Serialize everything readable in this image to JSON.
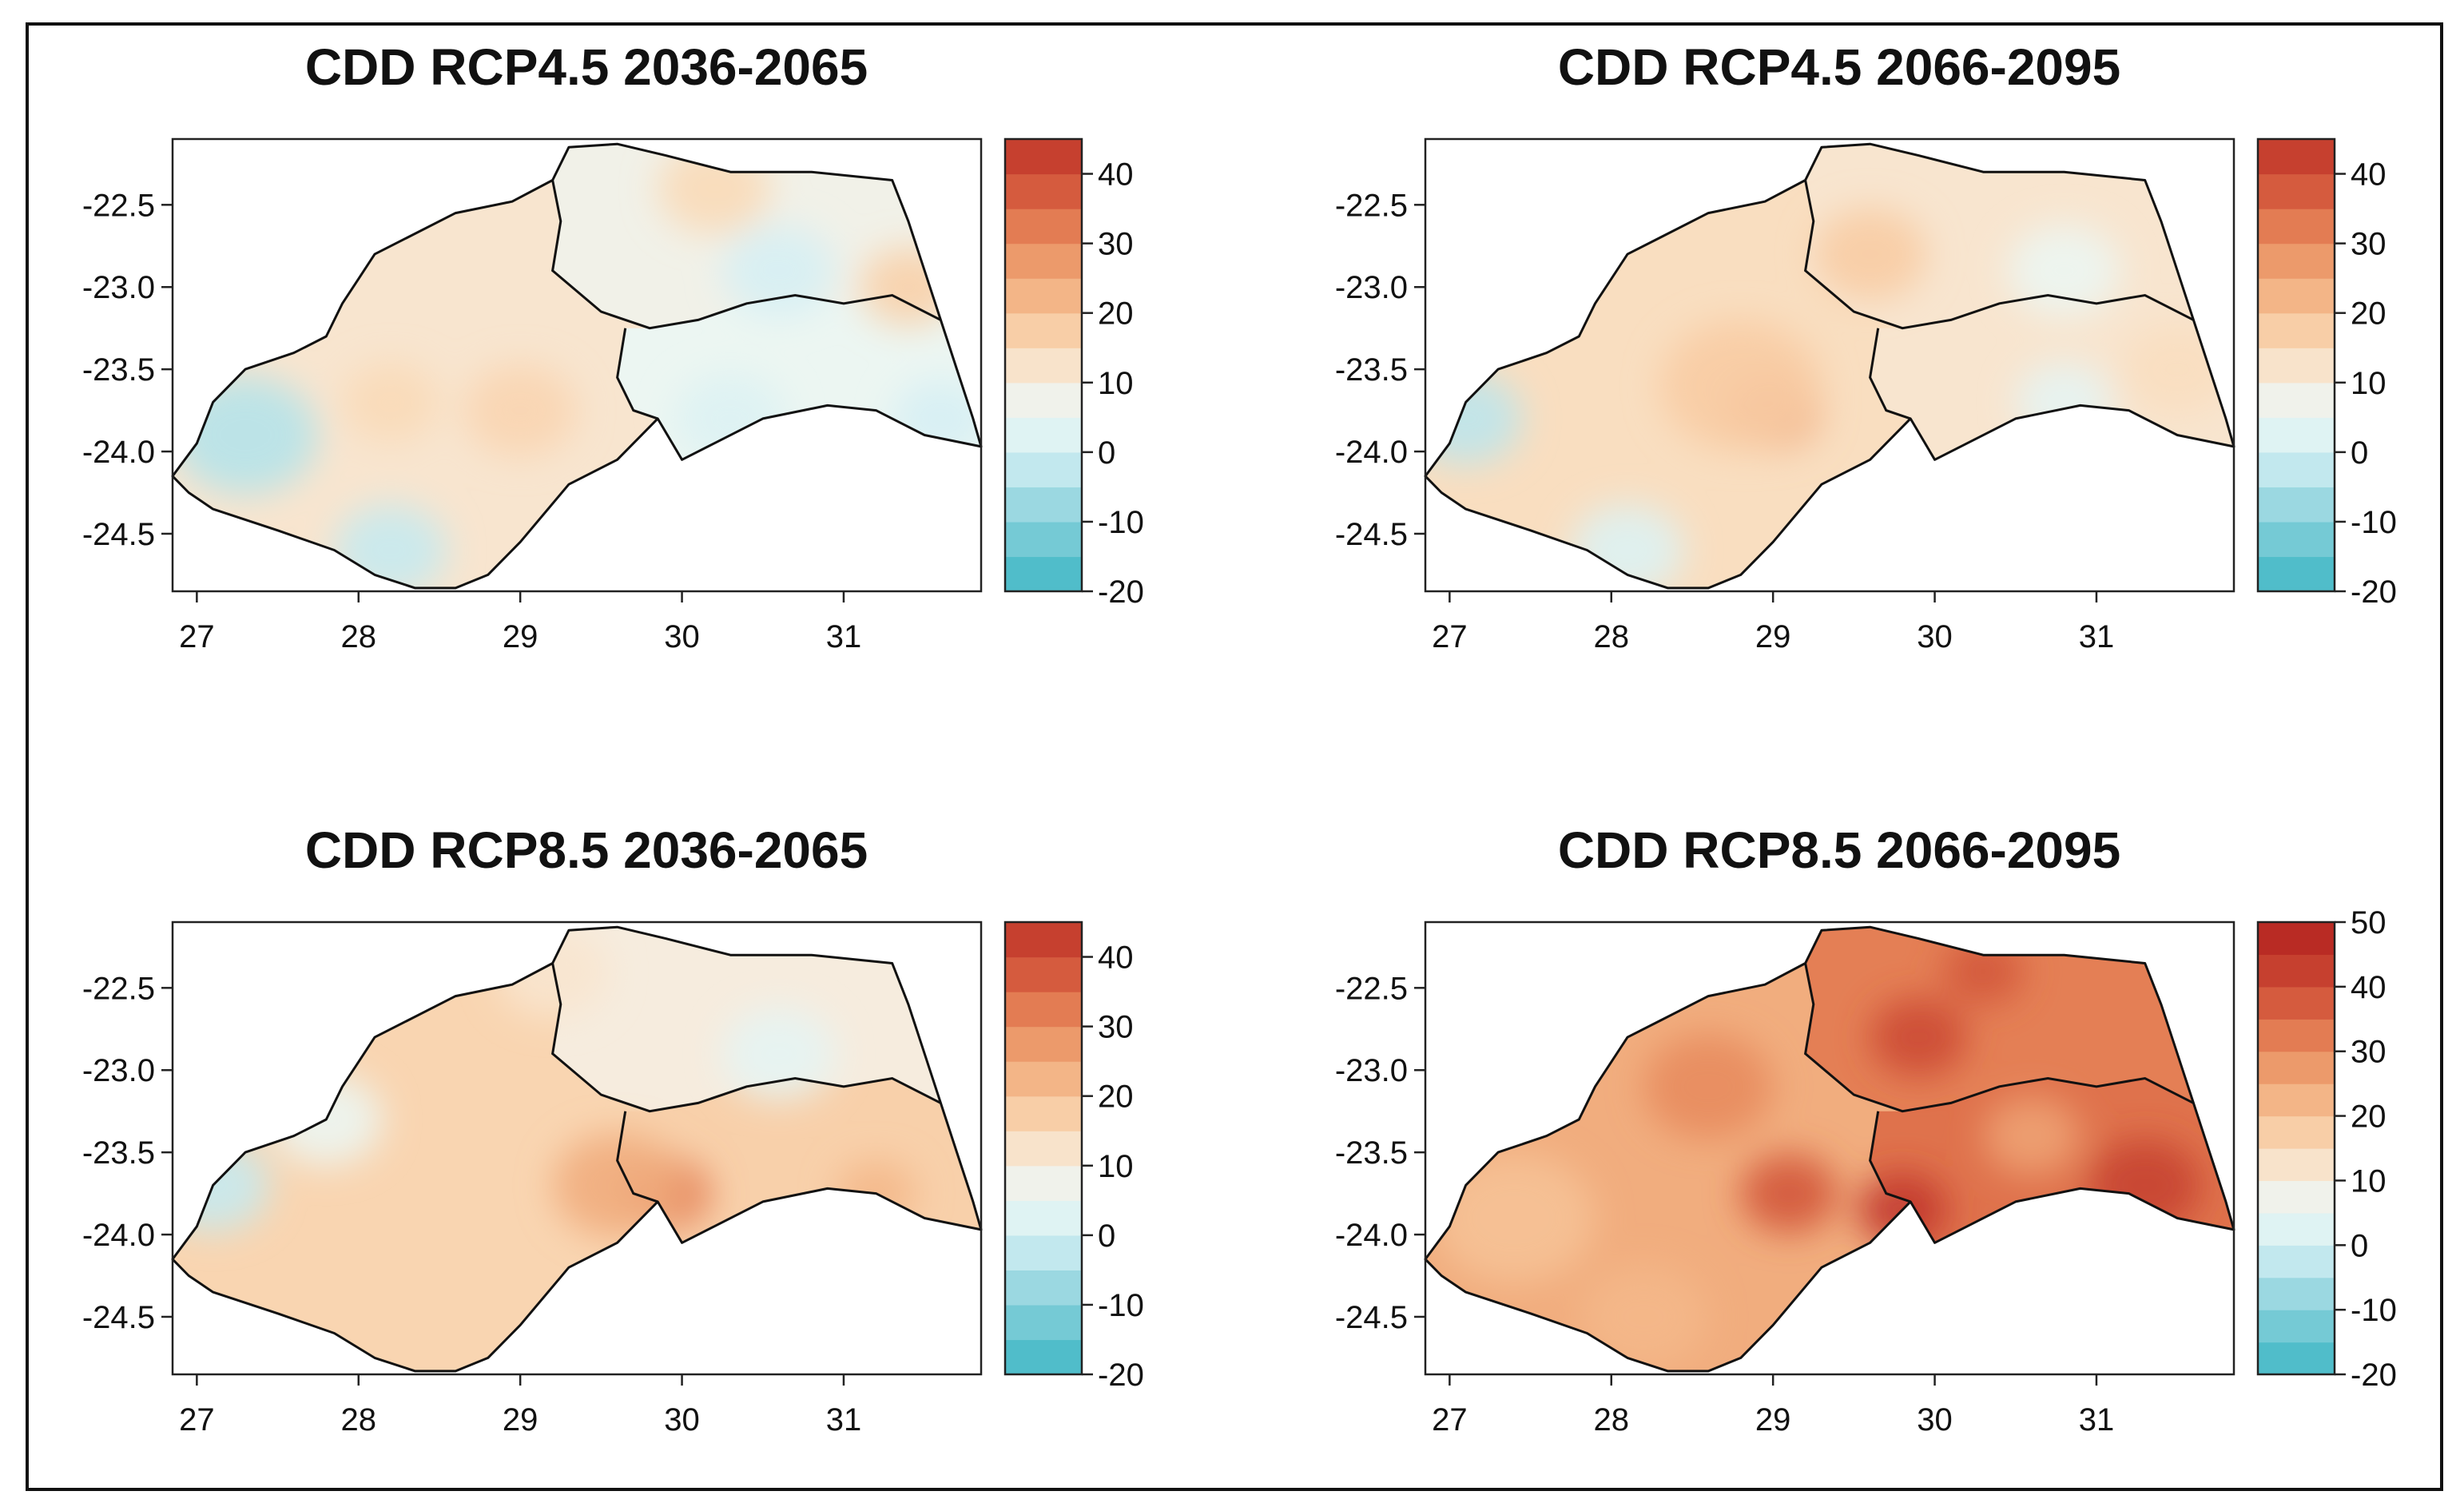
{
  "figure": {
    "panels": [
      {
        "title": "CDD RCP4.5 2036-2065",
        "y_ticks": [
          "-22.5",
          "-23.0",
          "-23.5",
          "-24.0",
          "-24.5"
        ],
        "x_ticks": [
          "27",
          "28",
          "29",
          "30",
          "31"
        ],
        "colorbar": {
          "ticks": [
            "40",
            "30",
            "20",
            "10",
            "0",
            "-10",
            "-20"
          ],
          "min": -20,
          "max": 45
        },
        "regions": {
          "west": 12,
          "north": 8,
          "east": 6
        },
        "blobs": [
          {
            "lon": 27.3,
            "lat": -23.9,
            "v": -4,
            "s": 0.45
          },
          {
            "lon": 28.2,
            "lat": -24.6,
            "v": -2,
            "s": 0.35
          },
          {
            "lon": 29.0,
            "lat": -23.75,
            "v": 16,
            "s": 0.35
          },
          {
            "lon": 28.2,
            "lat": -23.7,
            "v": 15,
            "s": 0.3
          },
          {
            "lon": 30.6,
            "lat": -22.9,
            "v": 0,
            "s": 0.35
          },
          {
            "lon": 30.2,
            "lat": -22.4,
            "v": 15,
            "s": 0.35
          },
          {
            "lon": 31.4,
            "lat": -23.0,
            "v": 17,
            "s": 0.3
          },
          {
            "lon": 30.3,
            "lat": -23.8,
            "v": 2,
            "s": 0.35
          },
          {
            "lon": 31.6,
            "lat": -23.8,
            "v": 0,
            "s": 0.3
          }
        ]
      },
      {
        "title": "CDD RCP4.5 2066-2095",
        "y_ticks": [
          "-22.5",
          "-23.0",
          "-23.5",
          "-24.0",
          "-24.5"
        ],
        "x_ticks": [
          "27",
          "28",
          "29",
          "30",
          "31"
        ],
        "colorbar": {
          "ticks": [
            "40",
            "30",
            "20",
            "10",
            "0",
            "-10",
            "-20"
          ],
          "min": -20,
          "max": 45
        },
        "regions": {
          "west": 14,
          "north": 12,
          "east": 12
        },
        "blobs": [
          {
            "lon": 27.1,
            "lat": -23.8,
            "v": -3,
            "s": 0.35
          },
          {
            "lon": 28.1,
            "lat": -24.6,
            "v": 2,
            "s": 0.35
          },
          {
            "lon": 29.0,
            "lat": -23.75,
            "v": 26,
            "s": 0.3
          },
          {
            "lon": 28.8,
            "lat": -23.6,
            "v": 18,
            "s": 0.5
          },
          {
            "lon": 29.6,
            "lat": -22.8,
            "v": 18,
            "s": 0.35
          },
          {
            "lon": 30.8,
            "lat": -22.9,
            "v": 6,
            "s": 0.35
          },
          {
            "lon": 30.8,
            "lat": -23.7,
            "v": 4,
            "s": 0.3
          },
          {
            "lon": 31.5,
            "lat": -23.5,
            "v": 14,
            "s": 0.35
          }
        ]
      },
      {
        "title": "CDD RCP8.5 2036-2065",
        "y_ticks": [
          "-22.5",
          "-23.0",
          "-23.5",
          "-24.0",
          "-24.5"
        ],
        "x_ticks": [
          "27",
          "28",
          "29",
          "30",
          "31"
        ],
        "colorbar": {
          "ticks": [
            "40",
            "30",
            "20",
            "10",
            "0",
            "-10",
            "-20"
          ],
          "min": -20,
          "max": 45
        },
        "regions": {
          "west": 16,
          "north": 10,
          "east": 17
        },
        "blobs": [
          {
            "lon": 27.1,
            "lat": -23.7,
            "v": -2,
            "s": 0.35
          },
          {
            "lon": 27.8,
            "lat": -23.3,
            "v": 6,
            "s": 0.35
          },
          {
            "lon": 29.9,
            "lat": -23.75,
            "v": 32,
            "s": 0.28
          },
          {
            "lon": 29.6,
            "lat": -23.7,
            "v": 24,
            "s": 0.4
          },
          {
            "lon": 31.2,
            "lat": -23.75,
            "v": 22,
            "s": 0.25
          },
          {
            "lon": 30.6,
            "lat": -22.9,
            "v": 4,
            "s": 0.35
          },
          {
            "lon": 29.2,
            "lat": -22.4,
            "v": 12,
            "s": 0.35
          }
        ]
      },
      {
        "title": "CDD RCP8.5 2066-2095",
        "y_ticks": [
          "-22.5",
          "-23.0",
          "-23.5",
          "-24.0",
          "-24.5"
        ],
        "x_ticks": [
          "27",
          "28",
          "29",
          "30",
          "31"
        ],
        "colorbar": {
          "ticks": [
            "50",
            "40",
            "30",
            "20",
            "10",
            "0",
            "-10",
            "-20"
          ],
          "min": -20,
          "max": 50
        },
        "regions": {
          "west": 24,
          "north": 32,
          "east": 34
        },
        "blobs": [
          {
            "lon": 27.4,
            "lat": -23.9,
            "v": 20,
            "s": 0.5
          },
          {
            "lon": 28.2,
            "lat": -24.5,
            "v": 22,
            "s": 0.4
          },
          {
            "lon": 29.1,
            "lat": -23.75,
            "v": 38,
            "s": 0.3
          },
          {
            "lon": 29.8,
            "lat": -23.85,
            "v": 44,
            "s": 0.28
          },
          {
            "lon": 29.9,
            "lat": -22.8,
            "v": 40,
            "s": 0.3
          },
          {
            "lon": 30.3,
            "lat": -22.4,
            "v": 38,
            "s": 0.25
          },
          {
            "lon": 31.3,
            "lat": -23.7,
            "v": 42,
            "s": 0.35
          },
          {
            "lon": 30.6,
            "lat": -23.4,
            "v": 26,
            "s": 0.3
          },
          {
            "lon": 28.6,
            "lat": -23.1,
            "v": 30,
            "s": 0.4
          }
        ]
      }
    ]
  }
}
